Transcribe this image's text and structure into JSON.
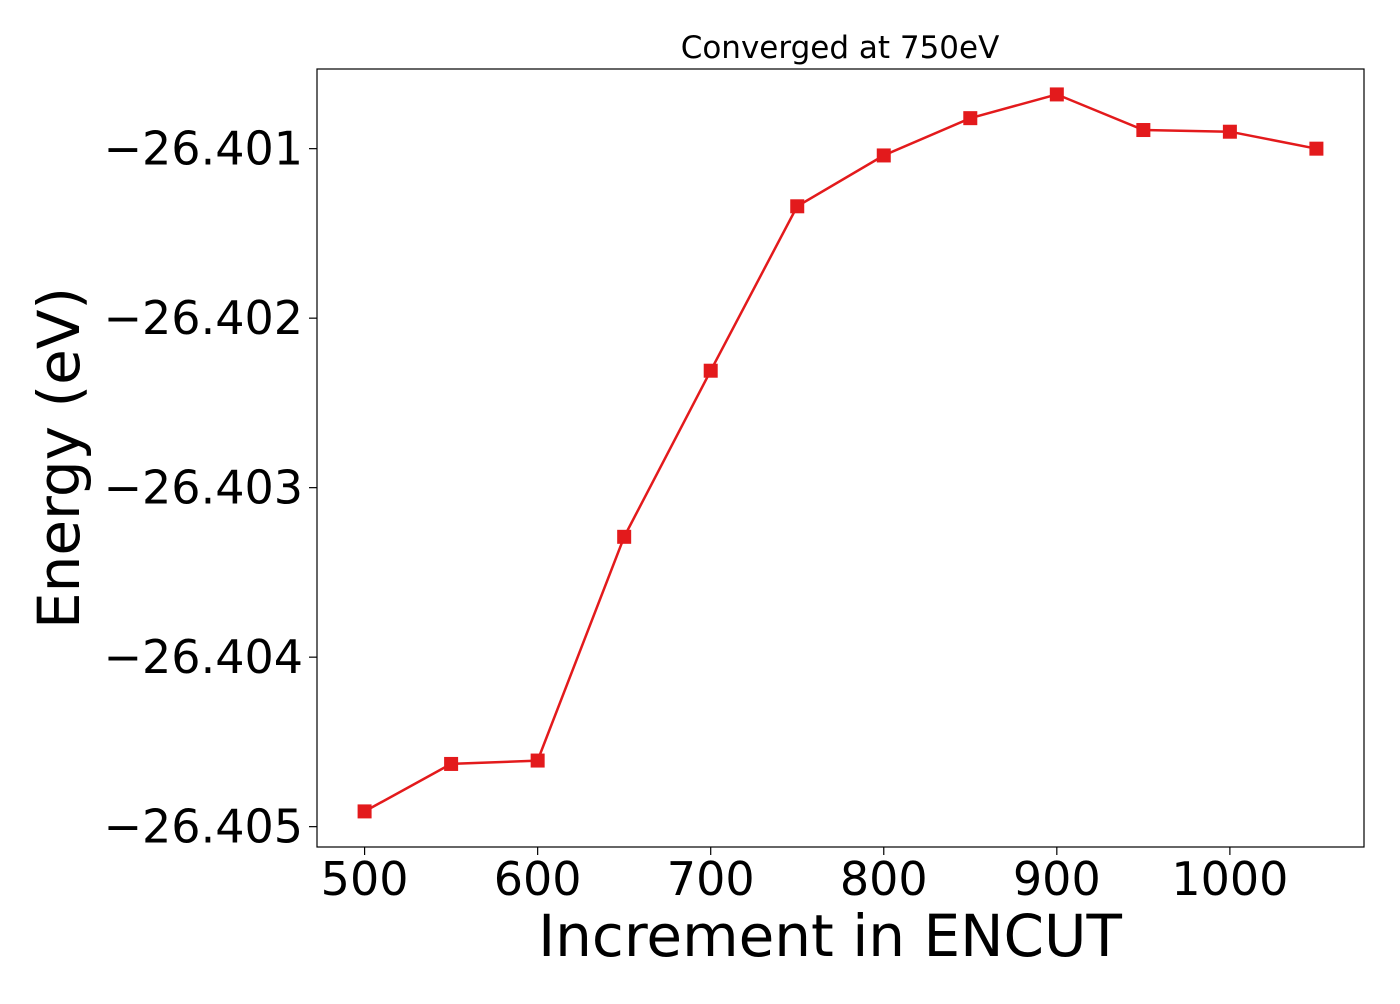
{
  "chart_data": {
    "type": "line",
    "title": "Converged at 750eV",
    "xlabel": "Increment in ENCUT",
    "ylabel": "Energy (eV)",
    "xlim": [
      472.5,
      1077.5
    ],
    "ylim": [
      -26.40512,
      -26.40053
    ],
    "x_ticks": [
      500,
      600,
      700,
      800,
      900,
      1000
    ],
    "x_tick_labels": [
      "500",
      "600",
      "700",
      "800",
      "900",
      "1000"
    ],
    "y_ticks": [
      -26.401,
      -26.402,
      -26.403,
      -26.404,
      -26.405
    ],
    "y_tick_labels": [
      "−26.401",
      "−26.402",
      "−26.403",
      "−26.404",
      "−26.405"
    ],
    "grid": false,
    "series": [
      {
        "color": "#e31a1c",
        "marker": "square",
        "x": [
          500,
          550,
          600,
          650,
          700,
          750,
          800,
          850,
          900,
          950,
          1000,
          1050
        ],
        "y": [
          -26.40491,
          -26.40463,
          -26.40461,
          -26.40329,
          -26.40231,
          -26.40134,
          -26.40104,
          -26.40082,
          -26.40068,
          -26.40089,
          -26.4009,
          -26.401
        ]
      }
    ]
  }
}
